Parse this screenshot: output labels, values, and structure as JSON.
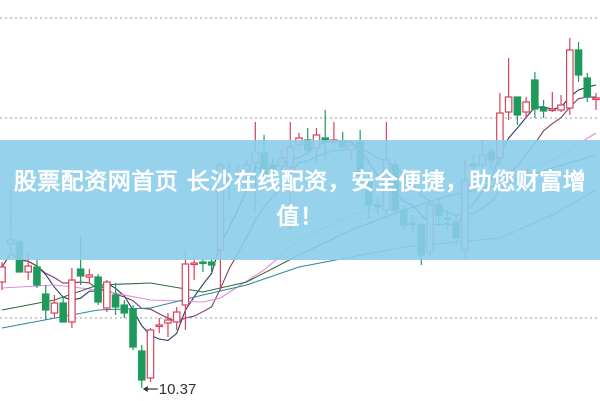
{
  "banner": {
    "text": "股票配资网首页 长沙在线配资，安全便捷，助您财富增值！"
  },
  "colors": {
    "up": "#d9405a",
    "down": "#1e9a5c",
    "grid": "#9a9a9a",
    "banner": "#8ccdeb"
  },
  "chart_data": {
    "type": "candlestick",
    "title": "",
    "xlabel": "",
    "ylabel": "",
    "ylim": [
      10.24,
      14.25
    ],
    "grid": {
      "horizontal": true,
      "style": "dotted",
      "levels": [
        14.07,
        13.07,
        12.07,
        11.07
      ]
    },
    "low_marker": {
      "label": "10.37",
      "value": 10.37,
      "candle_index": 16
    },
    "candles_ohlc": [
      [
        11.43,
        11.63,
        11.35,
        11.58
      ],
      [
        11.81,
        12.35,
        11.73,
        11.85
      ],
      [
        11.83,
        11.85,
        11.53,
        11.53
      ],
      [
        11.53,
        11.72,
        11.45,
        11.59
      ],
      [
        11.58,
        11.65,
        11.37,
        11.4
      ],
      [
        11.31,
        11.4,
        11.05,
        11.15
      ],
      [
        11.12,
        11.3,
        11.07,
        11.22
      ],
      [
        11.22,
        11.28,
        11.03,
        11.03
      ],
      [
        11.03,
        11.57,
        10.97,
        11.45
      ],
      [
        11.56,
        11.89,
        11.4,
        11.49
      ],
      [
        11.48,
        11.56,
        11.42,
        11.5
      ],
      [
        11.48,
        11.51,
        11.2,
        11.23
      ],
      [
        11.17,
        11.45,
        11.13,
        11.43
      ],
      [
        11.3,
        11.42,
        11.1,
        11.18
      ],
      [
        11.2,
        11.25,
        11.07,
        11.12
      ],
      [
        11.16,
        11.2,
        10.75,
        10.78
      ],
      [
        10.74,
        10.8,
        10.37,
        10.45
      ],
      [
        10.47,
        10.97,
        10.43,
        10.95
      ],
      [
        10.99,
        11.07,
        10.92,
        11.0
      ],
      [
        11.02,
        11.12,
        10.88,
        11.05
      ],
      [
        11.03,
        11.18,
        10.95,
        11.13
      ],
      [
        11.2,
        11.75,
        10.95,
        11.61
      ],
      [
        11.61,
        11.65,
        11.45,
        11.62
      ],
      [
        11.63,
        11.67,
        11.53,
        11.62
      ],
      [
        11.63,
        11.67,
        11.52,
        11.6
      ],
      [
        11.75,
        12.63,
        11.35,
        12.6
      ],
      [
        12.47,
        12.62,
        12.25,
        12.43
      ],
      [
        12.49,
        12.6,
        12.4,
        12.52
      ],
      [
        12.55,
        12.65,
        12.45,
        12.6
      ],
      [
        12.62,
        13.03,
        12.15,
        12.73
      ],
      [
        12.72,
        12.9,
        12.45,
        12.5
      ],
      [
        12.6,
        12.67,
        12.47,
        12.55
      ],
      [
        12.59,
        12.75,
        12.53,
        12.67
      ],
      [
        12.58,
        13.03,
        11.95,
        12.78
      ],
      [
        12.8,
        12.92,
        12.75,
        12.87
      ],
      [
        12.85,
        12.97,
        12.7,
        12.75
      ],
      [
        12.77,
        12.97,
        12.6,
        12.9
      ],
      [
        12.87,
        13.15,
        12.65,
        12.83
      ],
      [
        12.83,
        13.03,
        12.8,
        12.85
      ],
      [
        12.84,
        12.93,
        12.75,
        12.78
      ],
      [
        12.75,
        12.85,
        12.65,
        12.8
      ],
      [
        12.83,
        12.95,
        12.47,
        12.5
      ],
      [
        12.45,
        12.5,
        12.07,
        12.2
      ],
      [
        12.2,
        12.27,
        12.1,
        12.19
      ],
      [
        12.15,
        13.03,
        12.1,
        12.65
      ],
      [
        12.6,
        12.65,
        12.1,
        12.15
      ],
      [
        12.15,
        12.2,
        11.95,
        12.0
      ],
      [
        12.02,
        12.1,
        11.93,
        12.01
      ],
      [
        12.0,
        12.02,
        11.6,
        11.7
      ],
      [
        11.73,
        12.25,
        11.69,
        12.2
      ],
      [
        12.2,
        12.27,
        12.0,
        12.1
      ],
      [
        12.07,
        12.15,
        11.95,
        12.06
      ],
      [
        12.03,
        12.1,
        11.8,
        11.87
      ],
      [
        11.75,
        12.65,
        11.67,
        12.45
      ],
      [
        12.61,
        12.7,
        12.5,
        12.59
      ],
      [
        12.6,
        12.85,
        12.57,
        12.7
      ],
      [
        12.73,
        12.77,
        12.55,
        12.65
      ],
      [
        12.67,
        13.32,
        12.6,
        13.12
      ],
      [
        13.13,
        13.67,
        13.05,
        13.28
      ],
      [
        13.28,
        13.28,
        13.0,
        13.1
      ],
      [
        13.13,
        13.28,
        13.07,
        13.23
      ],
      [
        13.45,
        13.53,
        13.07,
        13.16
      ],
      [
        13.17,
        13.25,
        13.07,
        13.14
      ],
      [
        13.15,
        13.33,
        13.13,
        13.16
      ],
      [
        13.15,
        13.3,
        13.13,
        13.2
      ],
      [
        13.17,
        13.87,
        13.1,
        13.75
      ],
      [
        13.75,
        13.83,
        13.43,
        13.5
      ],
      [
        13.47,
        13.52,
        13.23,
        13.28
      ],
      [
        13.26,
        13.32,
        13.15,
        13.27
      ]
    ],
    "moving_averages": [
      {
        "window": 5,
        "color": "#2b3a67"
      },
      {
        "window": 10,
        "color": "#7a3f6e"
      },
      {
        "color": "#e58ad8",
        "points": [
          [
            0,
            11.37
          ],
          [
            6,
            11.4
          ],
          [
            11,
            11.35
          ],
          [
            17,
            11.25
          ],
          [
            23,
            11.23
          ],
          [
            25,
            11.27
          ],
          [
            30,
            11.55
          ],
          [
            34,
            11.85
          ],
          [
            40,
            12.1
          ],
          [
            46,
            12.25
          ],
          [
            51,
            12.35
          ],
          [
            57,
            12.47
          ],
          [
            63,
            12.65
          ],
          [
            68,
            12.92
          ]
        ]
      },
      {
        "color": "#2f6b3a",
        "points": [
          [
            0,
            11.15
          ],
          [
            6,
            11.25
          ],
          [
            11,
            11.4
          ],
          [
            17,
            11.42
          ],
          [
            23,
            11.33
          ],
          [
            28,
            11.43
          ],
          [
            34,
            11.7
          ],
          [
            40,
            11.95
          ],
          [
            46,
            12.15
          ],
          [
            51,
            12.29
          ],
          [
            57,
            12.4
          ],
          [
            63,
            12.57
          ],
          [
            68,
            12.7
          ]
        ]
      },
      {
        "color": "#2a8a9a",
        "points": [
          [
            0,
            10.97
          ],
          [
            11,
            11.15
          ],
          [
            17,
            11.17
          ],
          [
            23,
            11.3
          ],
          [
            28,
            11.4
          ],
          [
            34,
            11.58
          ],
          [
            40,
            11.68
          ],
          [
            46,
            11.78
          ],
          [
            51,
            11.82
          ],
          [
            57,
            11.87
          ],
          [
            63,
            12.1
          ],
          [
            68,
            12.35
          ]
        ]
      }
    ]
  }
}
